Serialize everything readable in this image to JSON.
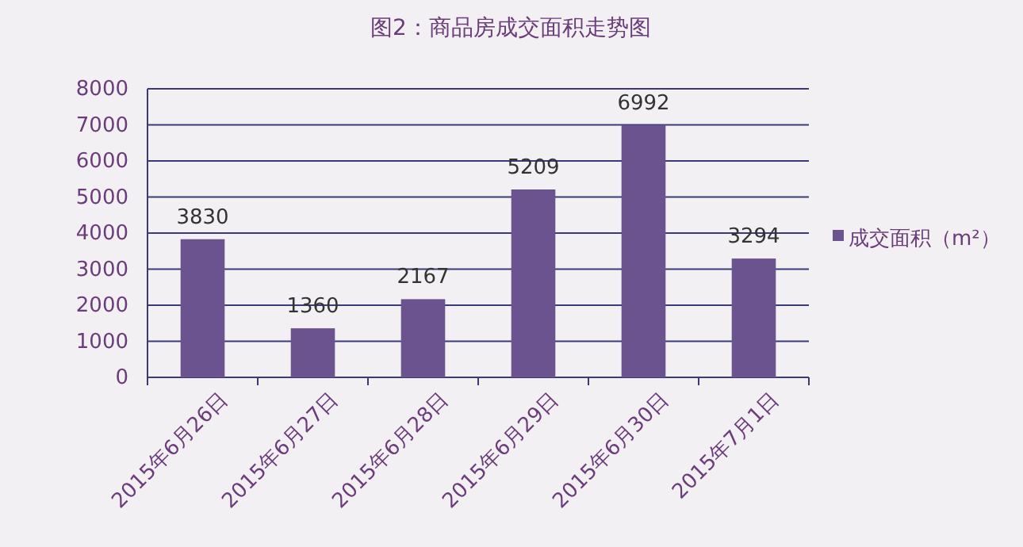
{
  "chart_data": {
    "type": "bar",
    "title": "图2：商品房成交面积走势图",
    "categories": [
      "2015年6月26日",
      "2015年6月27日",
      "2015年6月28日",
      "2015年6月29日",
      "2015年6月30日",
      "2015年7月1日"
    ],
    "series": [
      {
        "name": "成交面积（m²）",
        "color": "#6b5390",
        "values": [
          3830,
          1360,
          2167,
          5209,
          6992,
          3294
        ]
      }
    ],
    "ylim": [
      0,
      8000
    ],
    "yticks": [
      0,
      1000,
      2000,
      3000,
      4000,
      5000,
      6000,
      7000,
      8000
    ],
    "grid": "y",
    "legend": "right",
    "data_labels": true
  }
}
